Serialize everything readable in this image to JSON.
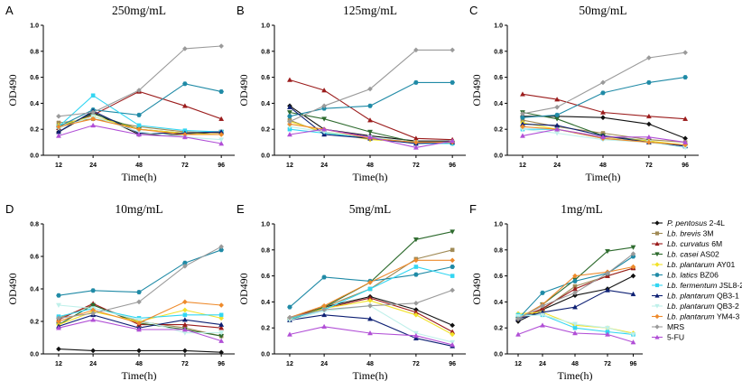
{
  "chart_data": {
    "type": "line",
    "x": [
      12,
      24,
      48,
      72,
      96
    ],
    "series_styles": [
      {
        "name_prefix": "P. pentosus",
        "name_suffix": "2-4L",
        "color": "#111111",
        "marker": "diamond"
      },
      {
        "name_prefix": "Lb. brevis",
        "name_suffix": "3M",
        "color": "#a08a55",
        "marker": "square"
      },
      {
        "name_prefix": "Lb. curvatus",
        "name_suffix": "6M",
        "color": "#9b1c1c",
        "marker": "triangle"
      },
      {
        "name_prefix": "Lb. casei",
        "name_suffix": "AS02",
        "color": "#2e6b2e",
        "marker": "triangle-down"
      },
      {
        "name_prefix": "Lb. plantarum",
        "name_suffix": "AY01",
        "color": "#f2e22a",
        "marker": "diamond"
      },
      {
        "name_prefix": "Lb. latics",
        "name_suffix": "BZ06",
        "color": "#1f8aa6",
        "marker": "hexagon"
      },
      {
        "name_prefix": "Lb. fermentum",
        "name_suffix": "JSL8-2",
        "color": "#33d6f2",
        "marker": "square"
      },
      {
        "name_prefix": "Lb. plantarum",
        "name_suffix": "QB3-1",
        "color": "#0d1f73",
        "marker": "triangle"
      },
      {
        "name_prefix": "Lb. plantarum",
        "name_suffix": "QB3-2",
        "color": "#bff0ea",
        "marker": "triangle-down"
      },
      {
        "name_prefix": "Lb. plantarum",
        "name_suffix": "YM4-3",
        "color": "#ee8a2b",
        "marker": "diamond"
      },
      {
        "name_prefix": "",
        "name_suffix": "MRS",
        "color": "#9a9a9a",
        "marker": "diamond"
      },
      {
        "name_prefix": "",
        "name_suffix": "5-FU",
        "color": "#b14fd6",
        "marker": "triangle"
      }
    ],
    "panels": [
      {
        "letter": "A",
        "title": "250mg/mL",
        "xlabel": "Time(h)",
        "ylabel": "OD490",
        "xticks": [
          "12",
          "24",
          "48",
          "72",
          "96"
        ],
        "ylim": [
          0,
          1.0
        ],
        "yticks": [
          "0.0",
          "0.2",
          "0.4",
          "0.6",
          "0.8",
          "1.0"
        ],
        "series": [
          [
            0.18,
            0.33,
            0.16,
            0.16,
            0.18
          ],
          [
            0.25,
            0.28,
            0.22,
            0.18,
            0.17
          ],
          [
            0.21,
            0.31,
            0.49,
            0.38,
            0.28
          ],
          [
            0.21,
            0.32,
            0.2,
            0.17,
            0.18
          ],
          [
            0.23,
            0.3,
            0.2,
            0.17,
            0.16
          ],
          [
            0.22,
            0.35,
            0.31,
            0.55,
            0.49
          ],
          [
            0.22,
            0.46,
            0.23,
            0.19,
            0.18
          ],
          [
            0.18,
            0.34,
            0.17,
            0.17,
            0.18
          ],
          [
            0.21,
            0.3,
            0.18,
            0.14,
            0.12
          ],
          [
            0.22,
            0.28,
            0.2,
            0.16,
            0.16
          ],
          [
            0.3,
            0.33,
            0.5,
            0.82,
            0.84
          ],
          [
            0.15,
            0.23,
            0.16,
            0.14,
            0.09
          ]
        ]
      },
      {
        "letter": "B",
        "title": "125mg/mL",
        "xlabel": "Time(h)",
        "ylabel": "OD490",
        "xticks": [
          "12",
          "24",
          "48",
          "72",
          "96"
        ],
        "ylim": [
          0,
          1.0
        ],
        "yticks": [
          "0.0",
          "0.2",
          "0.4",
          "0.6",
          "0.8",
          "1.0"
        ],
        "series": [
          [
            0.38,
            0.2,
            0.15,
            0.11,
            0.11
          ],
          [
            0.27,
            0.17,
            0.13,
            0.1,
            0.1
          ],
          [
            0.58,
            0.5,
            0.27,
            0.13,
            0.12
          ],
          [
            0.33,
            0.28,
            0.18,
            0.1,
            0.09
          ],
          [
            0.26,
            0.18,
            0.12,
            0.1,
            0.1
          ],
          [
            0.3,
            0.36,
            0.38,
            0.56,
            0.56
          ],
          [
            0.2,
            0.17,
            0.13,
            0.09,
            0.09
          ],
          [
            0.37,
            0.16,
            0.13,
            0.09,
            0.1
          ],
          [
            0.22,
            0.18,
            0.14,
            0.1,
            0.1
          ],
          [
            0.24,
            0.2,
            0.13,
            0.1,
            0.1
          ],
          [
            0.26,
            0.38,
            0.51,
            0.81,
            0.81
          ],
          [
            0.16,
            0.2,
            0.14,
            0.06,
            0.11
          ]
        ]
      },
      {
        "letter": "C",
        "title": "50mg/mL",
        "xlabel": "Time(h)",
        "ylabel": "OD490",
        "xticks": [
          "12",
          "24",
          "48",
          "72",
          "96"
        ],
        "ylim": [
          0,
          1.0
        ],
        "yticks": [
          "0.0",
          "0.2",
          "0.4",
          "0.6",
          "0.8",
          "1.0"
        ],
        "series": [
          [
            0.3,
            0.3,
            0.29,
            0.24,
            0.13
          ],
          [
            0.27,
            0.22,
            0.17,
            0.12,
            0.1
          ],
          [
            0.47,
            0.43,
            0.33,
            0.3,
            0.28
          ],
          [
            0.33,
            0.28,
            0.15,
            0.11,
            0.07
          ],
          [
            0.25,
            0.2,
            0.14,
            0.11,
            0.08
          ],
          [
            0.29,
            0.31,
            0.48,
            0.56,
            0.6
          ],
          [
            0.2,
            0.2,
            0.13,
            0.1,
            0.07
          ],
          [
            0.24,
            0.23,
            0.15,
            0.1,
            0.07
          ],
          [
            0.2,
            0.17,
            0.12,
            0.1,
            0.06
          ],
          [
            0.22,
            0.2,
            0.13,
            0.1,
            0.08
          ],
          [
            0.32,
            0.37,
            0.56,
            0.75,
            0.79
          ],
          [
            0.15,
            0.2,
            0.14,
            0.14,
            0.1
          ]
        ]
      },
      {
        "letter": "D",
        "title": "10mg/mL",
        "xlabel": "Time(h)",
        "ylabel": "OD490",
        "xticks": [
          "12",
          "24",
          "48",
          "72",
          "96"
        ],
        "ylim": [
          0,
          0.8
        ],
        "yticks": [
          "0.0",
          "0.2",
          "0.4",
          "0.6",
          "0.8"
        ],
        "series": [
          [
            0.03,
            0.02,
            0.02,
            0.02,
            0.01
          ],
          [
            0.22,
            0.3,
            0.2,
            0.16,
            0.11
          ],
          [
            0.21,
            0.31,
            0.18,
            0.18,
            0.16
          ],
          [
            0.18,
            0.3,
            0.19,
            0.15,
            0.11
          ],
          [
            0.18,
            0.26,
            0.2,
            0.27,
            0.22
          ],
          [
            0.36,
            0.39,
            0.38,
            0.56,
            0.64
          ],
          [
            0.23,
            0.28,
            0.22,
            0.24,
            0.24
          ],
          [
            0.17,
            0.24,
            0.16,
            0.21,
            0.18
          ],
          [
            0.3,
            0.28,
            0.21,
            0.13,
            0.13
          ],
          [
            0.2,
            0.27,
            0.19,
            0.32,
            0.3
          ],
          [
            0.22,
            0.25,
            0.32,
            0.54,
            0.66
          ],
          [
            0.16,
            0.21,
            0.15,
            0.15,
            0.08
          ]
        ]
      },
      {
        "letter": "E",
        "title": "5mg/mL",
        "xlabel": "Time(h)",
        "ylabel": "OD490",
        "xticks": [
          "12",
          "24",
          "48",
          "72",
          "96"
        ],
        "ylim": [
          0,
          1.0
        ],
        "yticks": [
          "0.0",
          "0.2",
          "0.4",
          "0.6",
          "0.8",
          "1.0"
        ],
        "series": [
          [
            0.28,
            0.36,
            0.44,
            0.34,
            0.22
          ],
          [
            0.27,
            0.36,
            0.5,
            0.73,
            0.8
          ],
          [
            0.28,
            0.35,
            0.43,
            0.32,
            0.17
          ],
          [
            0.26,
            0.36,
            0.55,
            0.88,
            0.94
          ],
          [
            0.27,
            0.35,
            0.41,
            0.3,
            0.15
          ],
          [
            0.36,
            0.59,
            0.56,
            0.61,
            0.67
          ],
          [
            0.27,
            0.34,
            0.5,
            0.67,
            0.6
          ],
          [
            0.26,
            0.3,
            0.27,
            0.12,
            0.06
          ],
          [
            0.26,
            0.33,
            0.37,
            0.16,
            0.09
          ],
          [
            0.28,
            0.37,
            0.55,
            0.72,
            0.72
          ],
          [
            0.28,
            0.34,
            0.37,
            0.39,
            0.49
          ],
          [
            0.15,
            0.21,
            0.16,
            0.14,
            0.07
          ]
        ]
      },
      {
        "letter": "F",
        "title": "1mg/mL",
        "xlabel": "Time(h)",
        "ylabel": "OD490",
        "xticks": [
          "12",
          "24",
          "48",
          "72",
          "96"
        ],
        "ylim": [
          0,
          1.0
        ],
        "yticks": [
          "0.0",
          "0.2",
          "0.4",
          "0.6",
          "0.8",
          "1.0"
        ],
        "series": [
          [
            0.25,
            0.34,
            0.45,
            0.5,
            0.6
          ],
          [
            0.27,
            0.34,
            0.52,
            0.6,
            0.66
          ],
          [
            0.27,
            0.35,
            0.5,
            0.6,
            0.66
          ],
          [
            0.27,
            0.38,
            0.57,
            0.79,
            0.82
          ],
          [
            0.31,
            0.32,
            0.22,
            0.2,
            0.16
          ],
          [
            0.27,
            0.47,
            0.56,
            0.62,
            0.75
          ],
          [
            0.3,
            0.3,
            0.2,
            0.17,
            0.15
          ],
          [
            0.27,
            0.32,
            0.36,
            0.49,
            0.46
          ],
          [
            0.29,
            0.3,
            0.23,
            0.2,
            0.15
          ],
          [
            0.27,
            0.38,
            0.6,
            0.63,
            0.67
          ],
          [
            0.27,
            0.37,
            0.47,
            0.62,
            0.77
          ],
          [
            0.15,
            0.22,
            0.16,
            0.15,
            0.09
          ]
        ]
      }
    ]
  }
}
